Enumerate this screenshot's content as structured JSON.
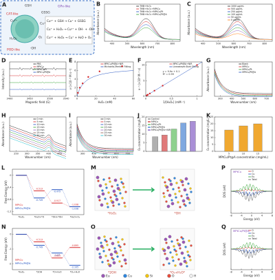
{
  "schematic": {
    "labels": [
      "GSH",
      "GPx-like",
      "GSSG",
      "CAT-like",
      "POD-like",
      "Cu²⁺",
      "Cu⁺",
      "H₂O₂",
      "O₂",
      "·OH"
    ],
    "equations": [
      "Cu²⁺ + GSH → Cu⁺ + GSSG",
      "Cu⁺ + H₂O₂ → Cu²⁺ + OH⁻ + ·OH",
      "Cu²⁺ + H₂O₂ → Cu⁺ + H₂O + O₂"
    ]
  },
  "panels": {
    "B": {
      "xlabel": "Wavelength (nm)",
      "ylabel": "Absorbance (a.u.)",
      "xlim": [
        350,
        850
      ],
      "xticks": [
        400,
        500,
        600,
        700,
        800
      ],
      "legend": [
        {
          "name": "TMB+H₂O₂",
          "color": "#222222"
        },
        {
          "name": "TMB+H₂O₂+MPtCu",
          "color": "#d62728"
        },
        {
          "name": "TMB+H₂O₂+MPtCu/Pt",
          "color": "#1f4fbf"
        },
        {
          "name": "TMB+H₂O₂+MPtCu/Pt@A",
          "color": "#2ca02c"
        }
      ]
    },
    "C": {
      "xlabel": "Wavelength (nm)",
      "ylabel": "Absorbance (a.u.)",
      "xlim": [
        350,
        850
      ],
      "xticks": [
        400,
        500,
        600,
        700,
        800
      ],
      "legend": [
        {
          "name": "1000 μg/mL",
          "color": "#222222"
        },
        {
          "name": "500 μg/mL",
          "color": "#d62728"
        },
        {
          "name": "250 μg/mL",
          "color": "#1f4fbf"
        },
        {
          "name": "100 μg/mL",
          "color": "#2ca02c"
        },
        {
          "name": "50 μg/mL",
          "color": "#9467bd"
        },
        {
          "name": "0 μg/mL",
          "color": "#ff7f0e"
        }
      ]
    },
    "D": {
      "xlabel": "Magnetic field (G)",
      "ylabel": "Intensity (a.u.)",
      "xlim": [
        3400,
        3540
      ],
      "xticks": [
        3400,
        3450,
        3500,
        3540
      ],
      "legend": [
        {
          "name": "PBS",
          "color": "#222222"
        },
        {
          "name": "MPtCu",
          "color": "#d62728"
        },
        {
          "name": "MPtCu/Pt",
          "color": "#2ca02c"
        },
        {
          "name": "MPtCu/Pt@A",
          "color": "#1f4fbf"
        }
      ]
    },
    "E": {
      "xlabel": "H₂O₂ (mM)",
      "ylabel": "v (×10⁻⁸ M s⁻¹)",
      "xlim": [
        0,
        60
      ],
      "ylim": [
        0,
        8
      ],
      "xticks": [
        0,
        20,
        40,
        60
      ],
      "yticks": [
        0,
        2,
        4,
        6,
        8
      ],
      "legend": [
        {
          "name": "MPtCu/Pt@A+NIR",
          "color": "#d62728"
        },
        {
          "name": "Michaelis-Menten Fitting",
          "color": "#1f4fbf"
        }
      ],
      "x": [
        1,
        3,
        6,
        12,
        24,
        48
      ],
      "values": [
        0.8,
        2,
        3,
        4.5,
        5.8,
        7
      ]
    },
    "F": {
      "xlabel": "1/[H₂O₂] (mM⁻¹)",
      "ylabel": "v⁻¹ (×10⁸ M⁻¹ s)",
      "xlim": [
        0,
        1.1
      ],
      "ylim": [
        0,
        11
      ],
      "xticks": [
        0,
        0.5,
        1
      ],
      "yticks": [
        0,
        5,
        10
      ],
      "legend": [
        {
          "name": "MPtCu/Pt@A+NIR",
          "color": "#d62728"
        },
        {
          "name": "Lineweaver-Burk Fitting",
          "color": "#1f4fbf"
        }
      ],
      "annotations": [
        "y = 9.9x + 0.1",
        "R² = 0.99"
      ],
      "x": [
        0.02,
        0.04,
        0.08,
        0.17,
        0.33,
        1
      ],
      "values": [
        0.3,
        0.5,
        0.9,
        1.8,
        3.4,
        10
      ]
    },
    "G": {
      "xlabel": "Wavenumber (nm)",
      "ylabel": "Absorbance (a.u.)",
      "xlim": [
        250,
        750
      ],
      "xticks": [
        300,
        400,
        500,
        600,
        700
      ],
      "legend": [
        {
          "name": "Blank",
          "color": "#222222"
        },
        {
          "name": "MPtCu",
          "color": "#d62728"
        },
        {
          "name": "MPtCu/Pt",
          "color": "#2ca02c"
        },
        {
          "name": "MPtCu/Pt@A",
          "color": "#1f4fbf"
        }
      ]
    },
    "H": {
      "xlabel": "Wavenumber (nm)",
      "ylabel": "Absorbance (a.u.)",
      "xlim": [
        220,
        480
      ],
      "xticks": [
        250,
        300,
        350,
        400,
        450
      ],
      "legend": [
        {
          "name": "0 min",
          "color": "#222222"
        },
        {
          "name": "5 min",
          "color": "#d62728"
        },
        {
          "name": "10 min",
          "color": "#1f4fbf"
        },
        {
          "name": "15 min",
          "color": "#2ca02c"
        },
        {
          "name": "20 min",
          "color": "#9467bd"
        },
        {
          "name": "25 min",
          "color": "#8c564b"
        },
        {
          "name": "30 min",
          "color": "#17becf"
        }
      ]
    },
    "I": {
      "xlabel": "Wavenumber (nm)",
      "ylabel": "Absorbance (a.u.)",
      "xlim": [
        250,
        750
      ],
      "xticks": [
        300,
        400,
        500,
        600,
        700
      ],
      "legend": [
        {
          "name": "0 min",
          "color": "#222222"
        },
        {
          "name": "5 min",
          "color": "#d62728"
        },
        {
          "name": "10 min",
          "color": "#1f4fbf"
        },
        {
          "name": "15 min",
          "color": "#2ca02c"
        },
        {
          "name": "20 min",
          "color": "#9467bd"
        },
        {
          "name": "25 min",
          "color": "#8c564b"
        },
        {
          "name": "30 min",
          "color": "#17becf"
        }
      ]
    },
    "J": {
      "ylabel": "O₂ concentration (mg/L)",
      "ylim": [
        0,
        20
      ],
      "yticks": [
        0,
        5,
        10,
        15,
        20
      ],
      "legend": [
        {
          "name": "Control",
          "color": "#b0b0b0"
        },
        {
          "name": "MPtCu",
          "color": "#e07a7a"
        },
        {
          "name": "MPtCu/Pt",
          "color": "#8fd18f"
        },
        {
          "name": "MPtCu/Pt@A",
          "color": "#7fa8e0"
        },
        {
          "name": "MPtCu/Pt@A+NIR",
          "color": "#a98fd6"
        }
      ],
      "values": [
        8.5,
        9.5,
        13,
        16.5,
        17.5
      ]
    },
    "K": {
      "xlabel": "MPtCu/Pt@A concentration (mg/mL)",
      "ylabel": "O₂ concentration (mg/L)",
      "ylim": [
        0,
        25
      ],
      "yticks": [
        0,
        5,
        10,
        15,
        20,
        25
      ],
      "categories": [
        "5",
        "10",
        "15"
      ],
      "values": [
        15.5,
        18.5,
        20
      ],
      "color": "#f0a830"
    },
    "L": {
      "ylabel": "Free Energy (eV)",
      "ylim": [
        -1.3,
        0.2
      ],
      "yticks": [
        0,
        -0.4,
        -0.8,
        -1.2
      ],
      "categories": [
        "*H₂O₂",
        "*H₂O+*O",
        "*OH+*OH",
        "*H₂O+O₂"
      ],
      "series": [
        {
          "name": "MPtCu",
          "color": "#d62728",
          "values": [
            0,
            -0.513,
            -0.917,
            -1.038
          ]
        },
        {
          "name": "MPtCu/Pt@A",
          "color": "#1f4fbf",
          "values": [
            0,
            -0.749,
            -0.475,
            -1.038
          ]
        }
      ]
    },
    "N": {
      "ylabel": "Free Energy (eV)",
      "ylim": [
        -2.4,
        0.4
      ],
      "yticks": [
        0,
        -1,
        -2
      ],
      "categories": [
        "*H₂O₂",
        "*2OH",
        "*O+H₂O",
        "*O₂+H₂O"
      ],
      "series": [
        {
          "name": "MPtCu",
          "color": "#d62728",
          "values": [
            0,
            -0.513,
            -1.603,
            -0.895
          ]
        },
        {
          "name": "MPtCu/Pt@A",
          "color": "#1f4fbf",
          "values": [
            0,
            -0.749,
            -1.27,
            -2.105
          ]
        }
      ]
    },
    "P": {
      "xlabel": "Energy (eV)",
      "ylabel": "DOS (eV)",
      "tag": "MPtCu",
      "xlim": [
        -8,
        8
      ],
      "xticks": [
        -8,
        -4,
        0,
        4,
        8
      ],
      "legend": [
        {
          "name": "O",
          "color": "#d62728"
        },
        {
          "name": "Cu",
          "color": "#1f4fbf"
        },
        {
          "name": "Eu",
          "color": "#2ca02c"
        },
        {
          "name": "Total",
          "color": "#555555"
        }
      ]
    },
    "Q": {
      "xlabel": "Energy (eV)",
      "ylabel": "DOS (eV)",
      "tag": "MPtCu/Pt@A",
      "xlim": [
        -8,
        8
      ],
      "xticks": [
        -8,
        -4,
        0,
        4,
        8
      ],
      "legend": [
        {
          "name": "O",
          "color": "#d62728"
        },
        {
          "name": "Cu",
          "color": "#1f4fbf"
        },
        {
          "name": "Eu",
          "color": "#2ca02c"
        },
        {
          "name": "Total",
          "color": "#555555"
        }
      ]
    }
  },
  "models": {
    "M": [
      "*H₂O₂",
      "*OH"
    ],
    "O": [
      "*2OH",
      "*O₂+H₂O*"
    ]
  },
  "letters": [
    "A",
    "B",
    "C",
    "D",
    "E",
    "F",
    "G",
    "H",
    "I",
    "J",
    "K",
    "L",
    "M",
    "N",
    "O",
    "P",
    "Q"
  ],
  "elements": [
    {
      "name": "Eu",
      "color": "#9b59b6"
    },
    {
      "name": "Cu",
      "color": "#2e86de"
    },
    {
      "name": "Si",
      "color": "#f1c40f"
    },
    {
      "name": "O",
      "color": "#e74c3c"
    },
    {
      "name": "H",
      "color": "#eeeeee"
    }
  ]
}
